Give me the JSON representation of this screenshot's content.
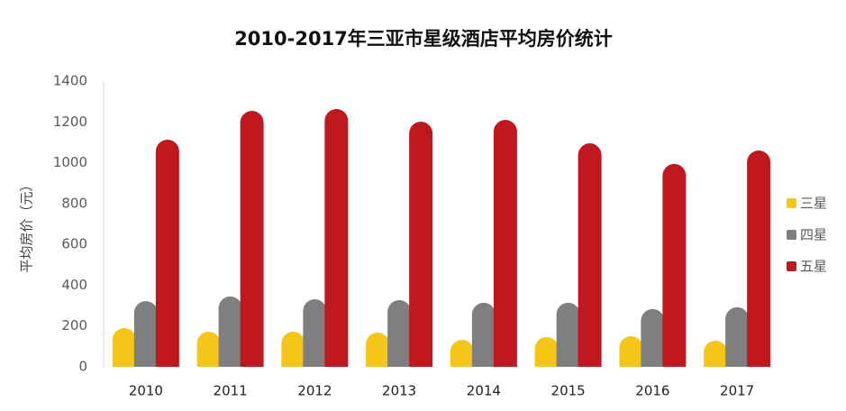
{
  "chart_data": {
    "type": "bar",
    "title": "2010-2017年三亚市星级酒店平均房价统计",
    "y_label": "平均房价（元）",
    "categories": [
      "2010",
      "2011",
      "2012",
      "2013",
      "2014",
      "2015",
      "2016",
      "2017"
    ],
    "series": [
      {
        "name": "三星",
        "color": "#f5c518",
        "values": [
          190,
          172,
          172,
          168,
          132,
          146,
          150,
          128
        ]
      },
      {
        "name": "四星",
        "color": "#7f7f7f",
        "values": [
          322,
          345,
          331,
          327,
          314,
          314,
          283,
          292
        ]
      },
      {
        "name": "五星",
        "color": "#c0181f",
        "values": [
          1113,
          1254,
          1263,
          1201,
          1210,
          1095,
          994,
          1060
        ]
      }
    ],
    "ylim": [
      0,
      1400
    ],
    "yticks": [
      0,
      200,
      400,
      600,
      800,
      1000,
      1200,
      1400
    ],
    "legend": "right"
  }
}
